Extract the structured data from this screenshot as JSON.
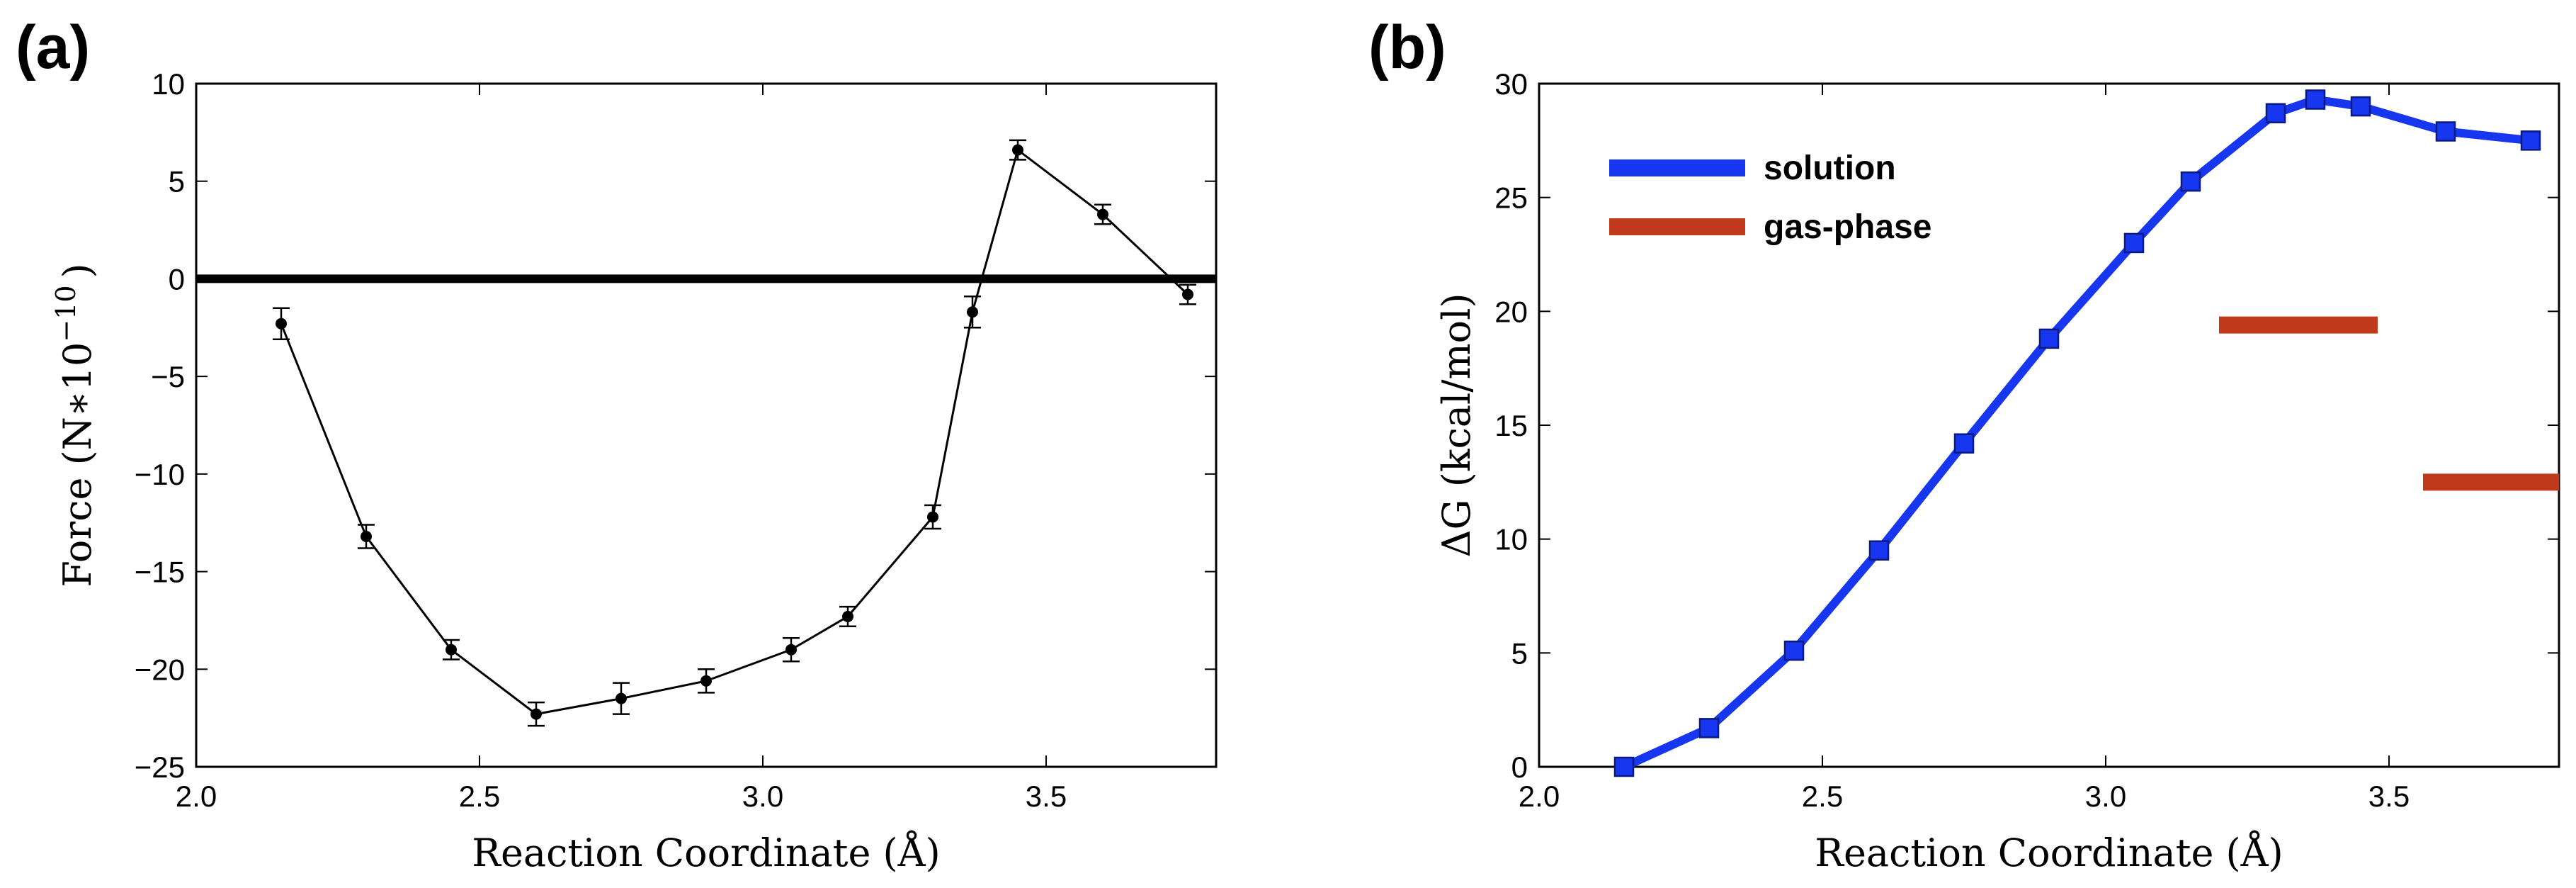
{
  "chart_data": [
    {
      "type": "line",
      "panel_label": "(a)",
      "title": "",
      "xlabel": "Reaction Coordinate (Å)",
      "ylabel_prefix": "Force (N∗10",
      "ylabel_exponent": "−10",
      "ylabel_suffix": ")",
      "xlim": [
        2.0,
        3.8
      ],
      "ylim": [
        -25,
        10
      ],
      "xticks": [
        2.0,
        2.5,
        3.0,
        3.5
      ],
      "xtick_labels": [
        "2.0",
        "2.5",
        "3.0",
        "3.5"
      ],
      "yticks": [
        -25,
        -20,
        -15,
        -10,
        -5,
        0,
        5,
        10
      ],
      "ytick_labels": [
        "−25",
        "−20",
        "−15",
        "−10",
        "−5",
        "0",
        "5",
        "10"
      ],
      "reference_line_y": 0,
      "series": [
        {
          "name": "Force",
          "color": "#000000",
          "x": [
            2.15,
            2.3,
            2.45,
            2.6,
            2.75,
            2.9,
            3.05,
            3.15,
            3.3,
            3.37,
            3.45,
            3.6,
            3.75
          ],
          "y": [
            -2.3,
            -13.2,
            -19.0,
            -22.3,
            -21.5,
            -20.6,
            -19.0,
            -17.3,
            -12.2,
            -1.7,
            6.6,
            3.3,
            -0.8
          ],
          "error": [
            0.8,
            0.6,
            0.5,
            0.6,
            0.8,
            0.6,
            0.6,
            0.5,
            0.6,
            0.8,
            0.5,
            0.5,
            0.5
          ]
        }
      ]
    },
    {
      "type": "line",
      "panel_label": "(b)",
      "title": "",
      "xlabel": "Reaction Coordinate (Å)",
      "ylabel": "ΔG (kcal/mol)",
      "xlim": [
        2.0,
        3.8
      ],
      "ylim": [
        0,
        30
      ],
      "xticks": [
        2.0,
        2.5,
        3.0,
        3.5
      ],
      "xtick_labels": [
        "2.0",
        "2.5",
        "3.0",
        "3.5"
      ],
      "yticks": [
        0,
        5,
        10,
        15,
        20,
        25,
        30
      ],
      "ytick_labels": [
        "0",
        "5",
        "10",
        "15",
        "20",
        "25",
        "30"
      ],
      "legend": "top-left",
      "series": [
        {
          "name": "solution",
          "color": "#1636f0",
          "x": [
            2.15,
            2.3,
            2.45,
            2.6,
            2.75,
            2.9,
            3.05,
            3.15,
            3.3,
            3.37,
            3.45,
            3.6,
            3.75
          ],
          "y": [
            0.0,
            1.7,
            5.1,
            9.5,
            14.2,
            18.8,
            23.0,
            25.7,
            28.7,
            29.3,
            29.0,
            27.9,
            27.5
          ]
        },
        {
          "name": "gas-phase",
          "color": "#c0391b",
          "segments": [
            {
              "x_start": 3.2,
              "x_end": 3.48,
              "y": 19.4
            },
            {
              "x_start": 3.56,
              "x_end": 3.8,
              "y": 12.5
            }
          ]
        }
      ]
    }
  ]
}
